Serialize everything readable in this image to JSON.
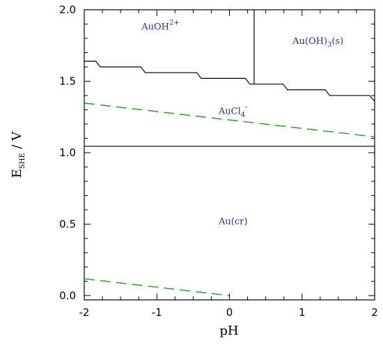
{
  "chart_data": {
    "type": "line",
    "xlabel": "pH",
    "ylabel": {
      "main": "E",
      "sub": "SHE",
      "unit": " / V"
    },
    "xlim": [
      -2,
      2
    ],
    "ylim": [
      -0.03,
      2.0
    ],
    "x_ticks": [
      -2,
      -1,
      0,
      1,
      2
    ],
    "x_tick_labels": [
      "-2",
      "-1",
      "0",
      "1",
      "2"
    ],
    "y_ticks": [
      0.0,
      0.5,
      1.0,
      1.5,
      2.0
    ],
    "y_tick_labels": [
      "0.0",
      "0.5",
      "1.0",
      "1.5",
      "2.0"
    ],
    "grid": false,
    "colors": {
      "boundary": "#000000",
      "water_lines": "#2e9b2e",
      "labels": "#2a2aa8"
    },
    "boundaries": [
      {
        "name": "upper-stepped-boundary",
        "style": "solid",
        "points": [
          [
            -2.0,
            1.64
          ],
          [
            -1.84,
            1.64
          ],
          [
            -1.78,
            1.6
          ],
          [
            -1.22,
            1.6
          ],
          [
            -1.16,
            1.56
          ],
          [
            -0.45,
            1.56
          ],
          [
            -0.39,
            1.52
          ],
          [
            0.22,
            1.52
          ],
          [
            0.28,
            1.48
          ],
          [
            0.74,
            1.48
          ],
          [
            0.8,
            1.44
          ],
          [
            1.32,
            1.44
          ],
          [
            1.38,
            1.4
          ],
          [
            1.93,
            1.4
          ],
          [
            2.0,
            1.36
          ]
        ]
      },
      {
        "name": "vertical-boundary",
        "style": "solid",
        "points": [
          [
            0.34,
            2.0
          ],
          [
            0.34,
            1.48
          ]
        ]
      },
      {
        "name": "horizontal-boundary",
        "style": "solid",
        "points": [
          [
            -2.0,
            1.045
          ],
          [
            2.0,
            1.045
          ]
        ]
      }
    ],
    "water_lines": [
      {
        "name": "oxygen-line",
        "style": "dashed",
        "points": [
          [
            -2.0,
            1.347
          ],
          [
            2.0,
            1.111
          ]
        ]
      },
      {
        "name": "hydrogen-line",
        "style": "dashed",
        "points": [
          [
            -2.0,
            0.118
          ],
          [
            0.0,
            0.0
          ]
        ]
      }
    ],
    "region_labels": [
      {
        "id": "auoh2",
        "main": "AuOH",
        "sup": "2+",
        "x": -0.95,
        "y": 1.86
      },
      {
        "id": "auoh3",
        "main": "Au(OH)",
        "sub": "3",
        "tail": "(s)",
        "x": 1.22,
        "y": 1.76
      },
      {
        "id": "aucl4",
        "main": "AuCl",
        "sub": "4",
        "sup": "-",
        "x": 0.05,
        "y": 1.27
      },
      {
        "id": "aucr",
        "main": "Au(cr)",
        "x": 0.05,
        "y": 0.5
      }
    ]
  }
}
